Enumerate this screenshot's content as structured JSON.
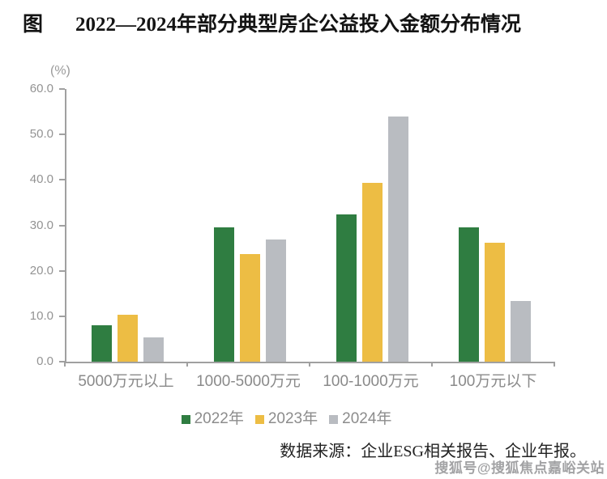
{
  "figure": {
    "title_prefix": "图",
    "title": "2022—2024年部分典型房企公益投入金额分布情况",
    "source_note": "数据来源：企业ESG相关报告、企业年报。",
    "watermark": "搜狐号@搜狐焦点嘉峪关站"
  },
  "chart_data": {
    "type": "bar",
    "title": "2022—2024年部分典型房企公益投入金额分布情况",
    "unit_label": "(%)",
    "categories": [
      "5000万元以上",
      "1000-5000万元",
      "100-1000万元",
      "100万元以下"
    ],
    "series": [
      {
        "name": "2022年",
        "color": "#2f7d41",
        "values": [
          8.0,
          29.5,
          32.4,
          29.5
        ]
      },
      {
        "name": "2023年",
        "color": "#edbd44",
        "values": [
          10.4,
          23.7,
          39.4,
          26.2
        ]
      },
      {
        "name": "2024年",
        "color": "#b9bcc1",
        "values": [
          5.4,
          26.9,
          54.0,
          13.4
        ]
      }
    ],
    "ylim": [
      0,
      60
    ],
    "ytick_step": 10,
    "ytick_decimals": 1,
    "grid": false,
    "legend_position": "bottom",
    "axis_color": "#a0a0a0",
    "label_color": "#8a8a8a"
  }
}
